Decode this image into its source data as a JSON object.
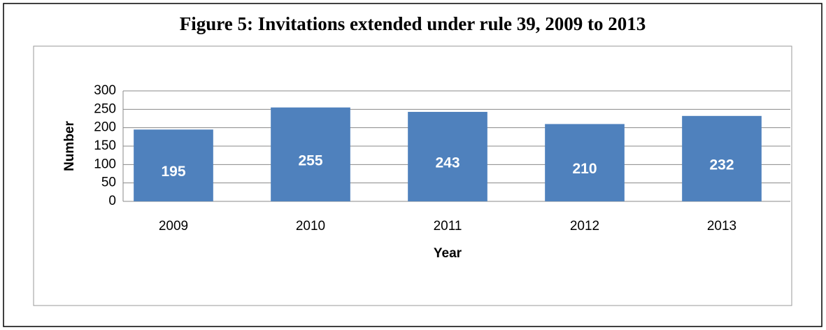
{
  "chart_data": {
    "type": "bar",
    "title": "Figure 5: Invitations extended under rule 39, 2009 to 2013",
    "x_label": "Year",
    "y_label": "Number",
    "categories": [
      "2009",
      "2010",
      "2011",
      "2012",
      "2013"
    ],
    "values": [
      195,
      255,
      243,
      210,
      232
    ],
    "color": "#4f81bd",
    "ylim": [
      0,
      300
    ],
    "yticks": [
      0,
      50,
      100,
      150,
      200,
      250,
      300
    ],
    "grid": true
  }
}
